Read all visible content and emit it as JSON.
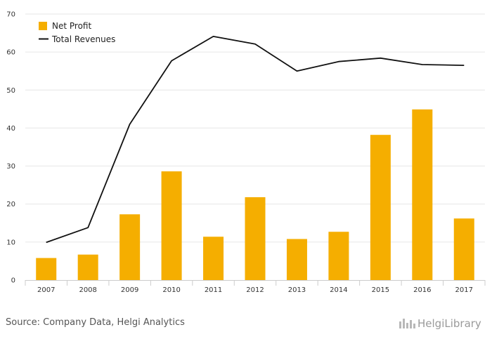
{
  "chart_data": {
    "type": "bar",
    "categories": [
      "2007",
      "2008",
      "2009",
      "2010",
      "2011",
      "2012",
      "2013",
      "2014",
      "2015",
      "2016",
      "2017"
    ],
    "series": [
      {
        "name": "Net Profit",
        "type": "bar",
        "color": "#F5AE00",
        "values": [
          5.8,
          6.7,
          17.3,
          28.6,
          11.4,
          21.8,
          10.8,
          12.7,
          38.2,
          44.9,
          16.2
        ]
      },
      {
        "name": "Total Revenues",
        "type": "line",
        "color": "#111111",
        "values": [
          9.9,
          13.8,
          41.0,
          57.7,
          64.1,
          62.1,
          55.0,
          57.5,
          58.4,
          56.7,
          56.5
        ]
      }
    ],
    "title": "",
    "xlabel": "",
    "ylabel": "",
    "ylim": [
      0,
      70
    ],
    "yticks": [
      0,
      10,
      20,
      30,
      40,
      50,
      60,
      70
    ],
    "grid": true,
    "legend_position": "top-left"
  },
  "footer": {
    "source": "Source: Company Data, Helgi Analytics",
    "brand_name": "HelgiLibrary"
  }
}
